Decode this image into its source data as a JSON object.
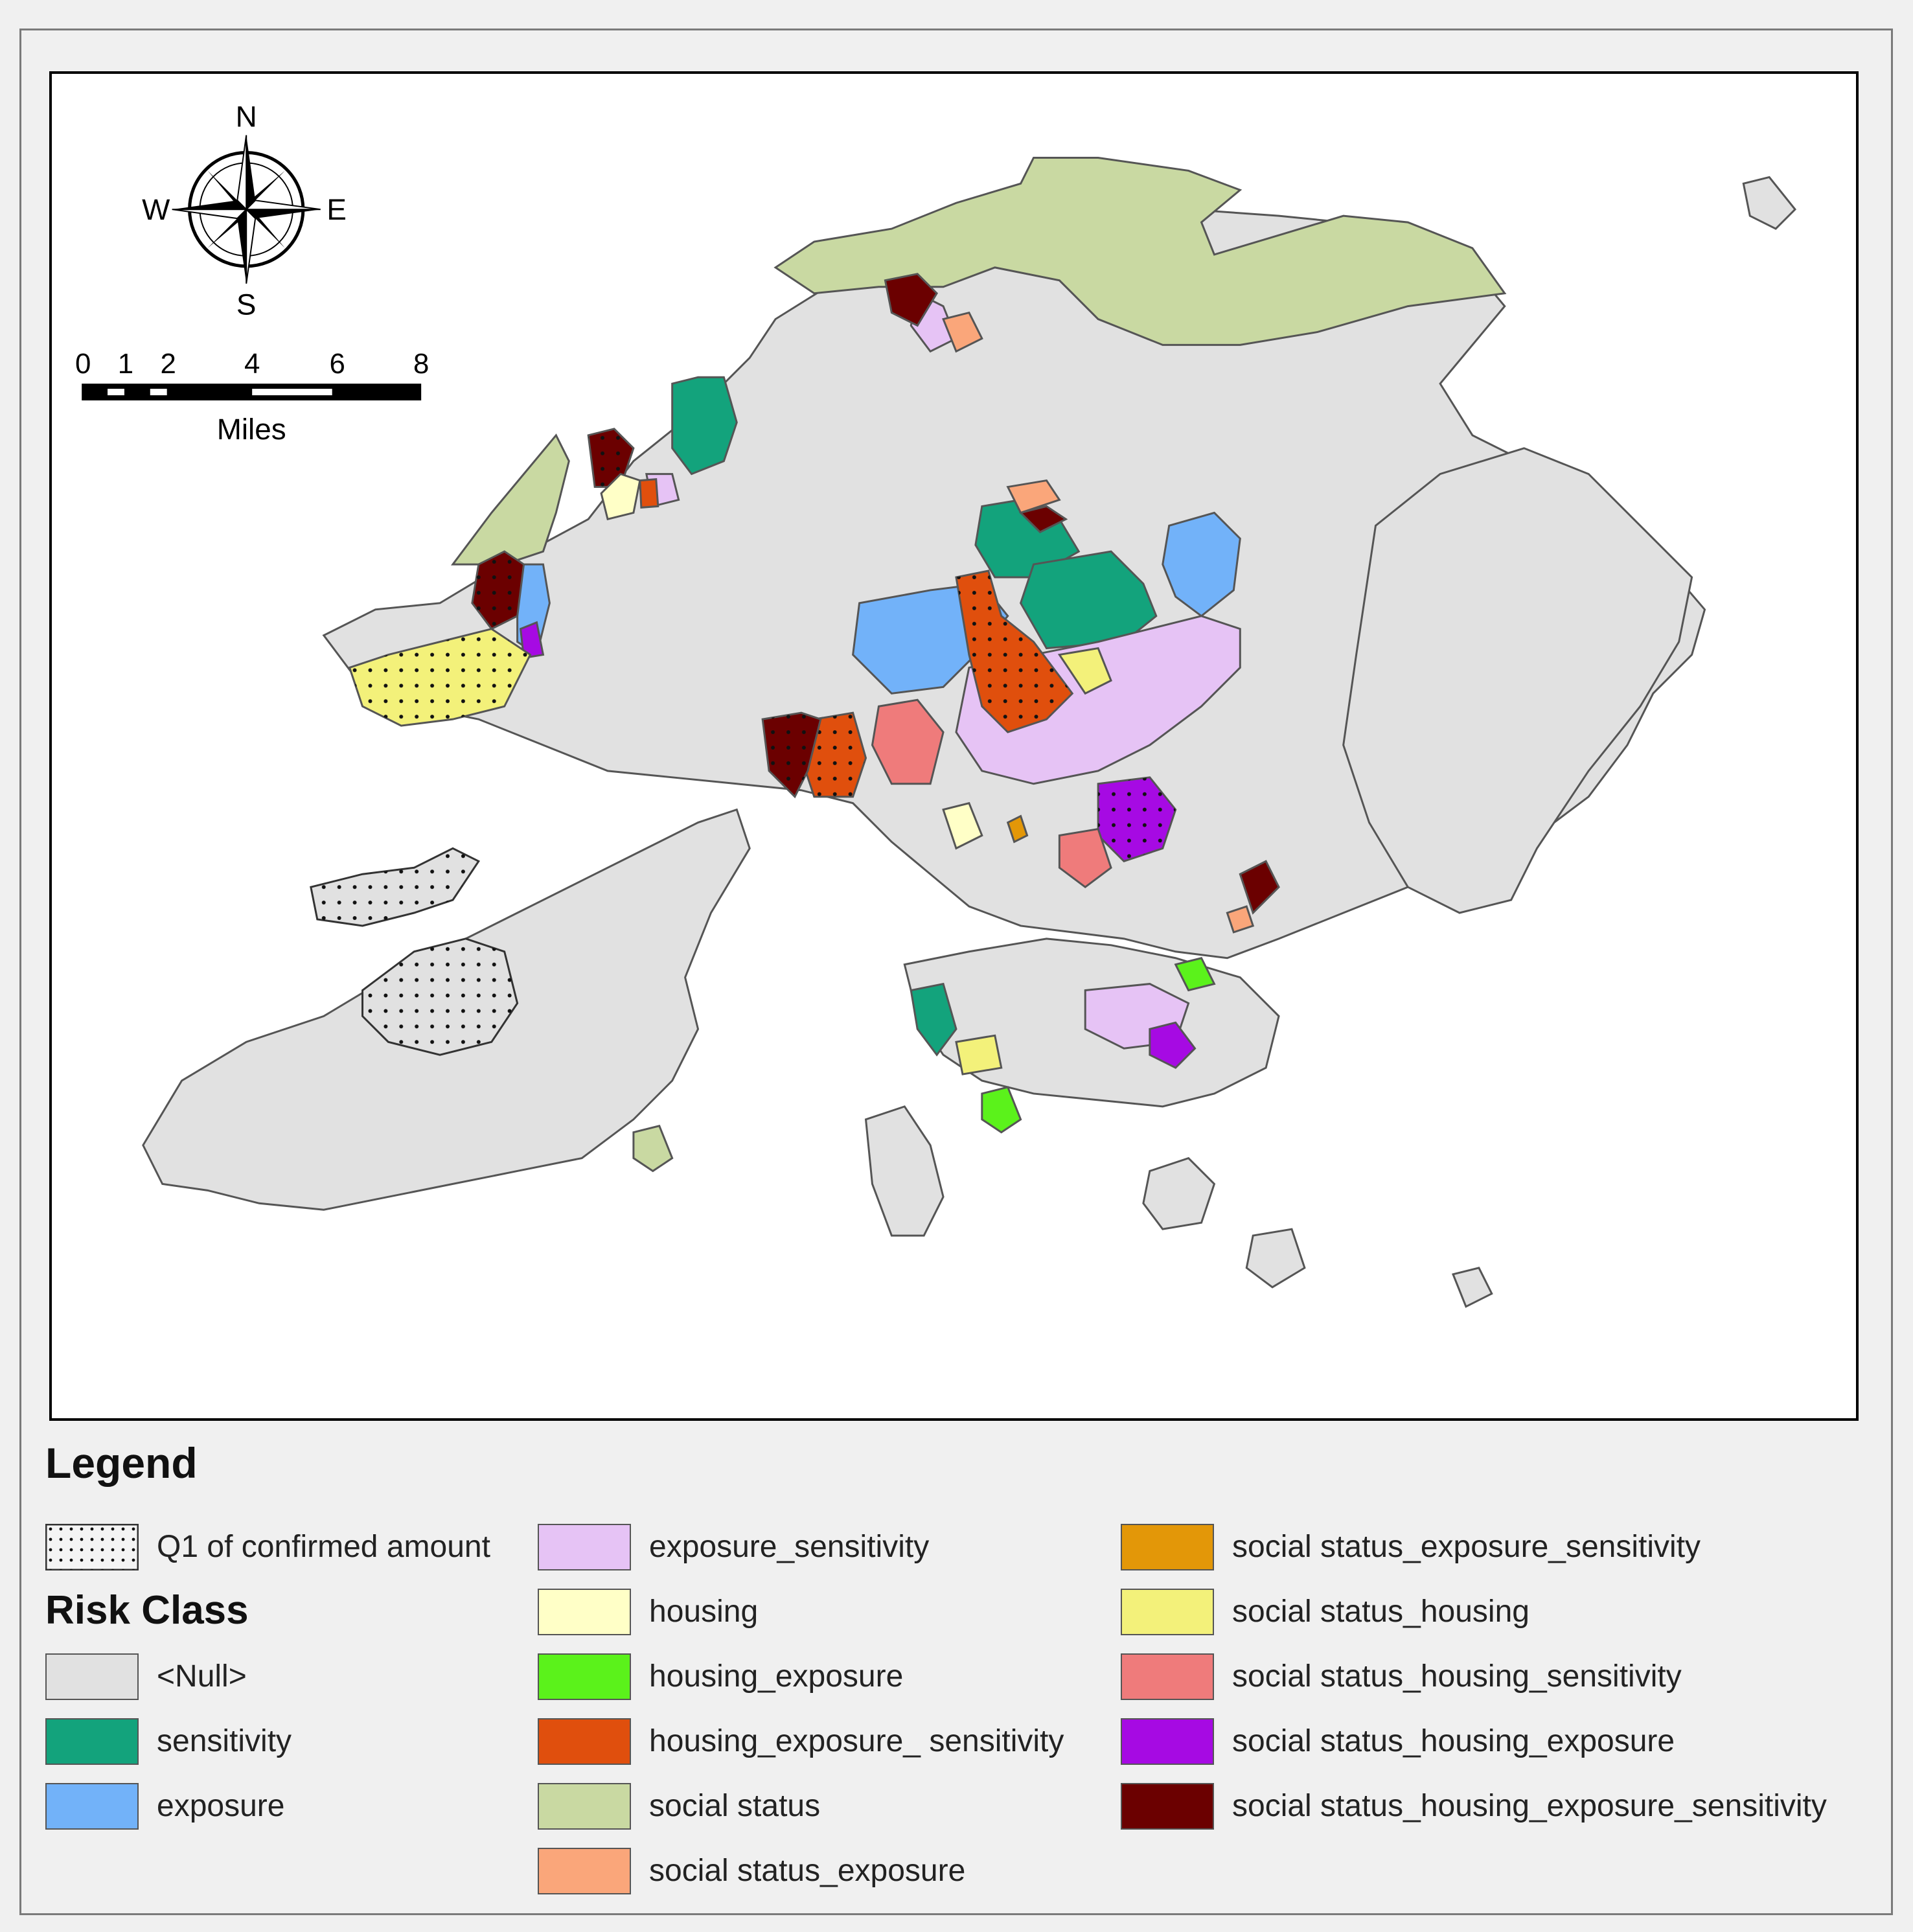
{
  "compass": {
    "n": "N",
    "s": "S",
    "e": "E",
    "w": "W"
  },
  "scale_bar": {
    "ticks": [
      "0",
      "1",
      "2",
      "4",
      "6",
      "8"
    ],
    "unit": "Miles"
  },
  "legend": {
    "title": "Legend",
    "dotted_label": "Q1 of confirmed amount",
    "risk_title": "Risk Class",
    "classes": [
      {
        "label": "<Null>",
        "color": "#e1e1e1"
      },
      {
        "label": "sensitivity",
        "color": "#13a37c"
      },
      {
        "label": "exposure",
        "color": "#72b2f9"
      },
      {
        "label": "exposure_sensitivity",
        "color": "#e6c3f5"
      },
      {
        "label": "housing",
        "color": "#ffffc7"
      },
      {
        "label": "housing_exposure",
        "color": "#5bf21b"
      },
      {
        "label": "housing_exposure_ sensitivity",
        "color": "#e04f0d"
      },
      {
        "label": "social status",
        "color": "#c9d9a2"
      },
      {
        "label": "social status_exposure",
        "color": "#faa67a"
      },
      {
        "label": "social status_exposure_sensitivity",
        "color": "#e39708"
      },
      {
        "label": "social status_housing",
        "color": "#f3f17a"
      },
      {
        "label": "social status_housing_sensitivity",
        "color": "#ef7b7b"
      },
      {
        "label": "social status_housing_exposure",
        "color": "#a60ae3"
      },
      {
        "label": "social status_housing_exposure_sensitivity",
        "color": "#6b0000"
      }
    ]
  }
}
